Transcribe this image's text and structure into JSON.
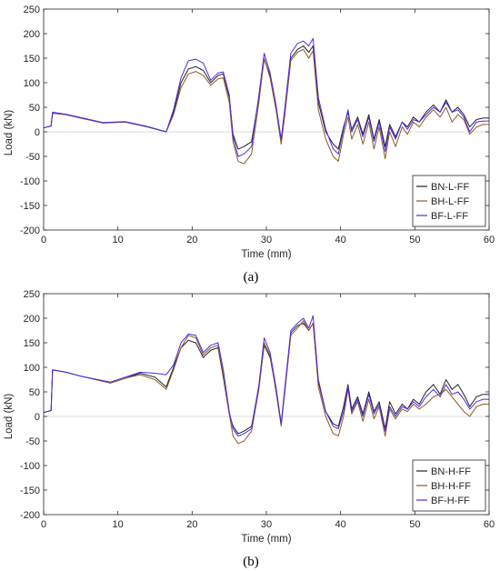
{
  "chart_data": [
    {
      "type": "line",
      "caption": "(a)",
      "xlabel": "Time (mm)",
      "ylabel": "Load (kN)",
      "xlim": [
        0,
        60
      ],
      "ylim": [
        -200,
        250
      ],
      "xticks": [
        0,
        10,
        20,
        30,
        40,
        50,
        60
      ],
      "yticks": [
        -200,
        -150,
        -100,
        -50,
        0,
        50,
        100,
        150,
        200,
        250
      ],
      "legend_position": "bottom-right",
      "zero_line": true,
      "series": [
        {
          "name": "BN-L-FF",
          "color": "#222222",
          "x": [
            0,
            1,
            1.2,
            3,
            5,
            8,
            11,
            14,
            16.5,
            17.5,
            18.5,
            19.5,
            20.5,
            21.5,
            22.5,
            23.5,
            24.2,
            25,
            25.5,
            26.2,
            27,
            28,
            29,
            29.7,
            30.5,
            31.3,
            32,
            32.5,
            33.3,
            34.2,
            35,
            35.7,
            36.3,
            37,
            38,
            39,
            39.7,
            40.4,
            41,
            41.5,
            42.3,
            43,
            43.8,
            44.5,
            45.2,
            46,
            46.6,
            47.4,
            48.3,
            49,
            49.8,
            50.6,
            51.5,
            52.5,
            53.4,
            54.2,
            55,
            55.8,
            56.6,
            57.4,
            58.3,
            59.2,
            60
          ],
          "y": [
            8,
            12,
            38,
            35,
            28,
            18,
            20,
            10,
            0,
            40,
            100,
            128,
            133,
            125,
            100,
            115,
            118,
            70,
            -5,
            -35,
            -30,
            -20,
            70,
            148,
            115,
            50,
            -20,
            45,
            150,
            168,
            175,
            162,
            175,
            60,
            0,
            -25,
            -35,
            10,
            40,
            5,
            30,
            -5,
            35,
            -15,
            25,
            -30,
            15,
            -10,
            20,
            10,
            30,
            20,
            40,
            55,
            40,
            65,
            40,
            50,
            35,
            10,
            25,
            28,
            28
          ]
        },
        {
          "name": "BH-L-FF",
          "color": "#8b5a2b",
          "x": [
            0,
            1,
            1.2,
            3,
            5,
            8,
            11,
            14,
            16.5,
            17.5,
            18.5,
            19.5,
            20.5,
            21.5,
            22.5,
            23.5,
            24.2,
            25,
            25.5,
            26.2,
            27,
            28,
            29,
            29.7,
            30.5,
            31.3,
            32,
            32.5,
            33.3,
            34.2,
            35,
            35.7,
            36.3,
            37,
            38,
            39,
            39.7,
            40.4,
            41,
            41.5,
            42.3,
            43,
            43.8,
            44.5,
            45.2,
            46,
            46.6,
            47.4,
            48.3,
            49,
            49.8,
            50.6,
            51.5,
            52.5,
            53.4,
            54.2,
            55,
            55.8,
            56.6,
            57.4,
            58.3,
            59.2,
            60
          ],
          "y": [
            8,
            12,
            38,
            35,
            28,
            18,
            20,
            10,
            0,
            35,
            90,
            118,
            123,
            115,
            95,
            108,
            110,
            60,
            -20,
            -60,
            -65,
            -45,
            60,
            150,
            110,
            45,
            -25,
            35,
            145,
            162,
            168,
            150,
            165,
            45,
            -15,
            -50,
            -60,
            -5,
            30,
            -15,
            15,
            -25,
            20,
            -35,
            10,
            -55,
            0,
            -30,
            10,
            -5,
            20,
            10,
            30,
            45,
            30,
            50,
            20,
            35,
            25,
            -5,
            10,
            15,
            15
          ]
        },
        {
          "name": "BF-L-FF",
          "color": "#4a2be8",
          "x": [
            0,
            1,
            1.2,
            3,
            5,
            8,
            11,
            14,
            16.5,
            17.5,
            18.5,
            19.5,
            20.5,
            21.5,
            22.5,
            23.5,
            24.2,
            25,
            25.5,
            26.2,
            27,
            28,
            29,
            29.7,
            30.5,
            31.3,
            32,
            32.5,
            33.3,
            34.2,
            35,
            35.7,
            36.3,
            37,
            38,
            39,
            39.7,
            40.4,
            41,
            41.5,
            42.3,
            43,
            43.8,
            44.5,
            45.2,
            46,
            46.6,
            47.4,
            48.3,
            49,
            49.8,
            50.6,
            51.5,
            52.5,
            53.4,
            54.2,
            55,
            55.8,
            56.6,
            57.4,
            58.3,
            59.2,
            60
          ],
          "y": [
            8,
            12,
            40,
            36,
            29,
            19,
            21,
            11,
            0,
            45,
            110,
            145,
            148,
            140,
            105,
            120,
            122,
            75,
            -10,
            -50,
            -45,
            -30,
            75,
            160,
            120,
            55,
            -15,
            50,
            160,
            180,
            185,
            175,
            190,
            70,
            5,
            -35,
            -45,
            5,
            45,
            0,
            25,
            -10,
            30,
            -20,
            20,
            -40,
            10,
            -15,
            20,
            5,
            25,
            20,
            35,
            50,
            40,
            60,
            40,
            45,
            30,
            0,
            20,
            22,
            22
          ]
        }
      ]
    },
    {
      "type": "line",
      "caption": "(b)",
      "xlabel": "Time (mm)",
      "ylabel": "Load (kN)",
      "xlim": [
        0,
        60
      ],
      "ylim": [
        -200,
        250
      ],
      "xticks": [
        0,
        10,
        20,
        30,
        40,
        50,
        60
      ],
      "yticks": [
        -200,
        -150,
        -100,
        -50,
        0,
        50,
        100,
        150,
        200,
        250
      ],
      "legend_position": "bottom-right",
      "zero_line": true,
      "series": [
        {
          "name": "BN-H-FF",
          "color": "#222222",
          "x": [
            0,
            1,
            1.2,
            3,
            5,
            9,
            11,
            13,
            15,
            16.5,
            17.5,
            18.5,
            19.5,
            20.5,
            21.5,
            22.5,
            23.5,
            24.2,
            25,
            25.5,
            26.2,
            27,
            28,
            29,
            29.7,
            30.5,
            31.3,
            32,
            32.5,
            33.3,
            34.2,
            35,
            35.7,
            36.3,
            37,
            38,
            39,
            39.7,
            40.4,
            41,
            41.5,
            42.3,
            43,
            43.8,
            44.5,
            45.2,
            46,
            46.6,
            47.4,
            48.3,
            49,
            49.8,
            50.6,
            51.5,
            52.5,
            53.4,
            54.2,
            55,
            55.8,
            56.6,
            57.4,
            58.3,
            59.2,
            60
          ],
          "y": [
            8,
            12,
            95,
            90,
            82,
            68,
            78,
            88,
            80,
            60,
            100,
            140,
            155,
            150,
            120,
            135,
            140,
            80,
            5,
            -20,
            -35,
            -30,
            -20,
            60,
            145,
            120,
            55,
            -15,
            55,
            170,
            185,
            190,
            175,
            190,
            70,
            10,
            -15,
            -20,
            20,
            65,
            15,
            40,
            5,
            50,
            10,
            30,
            -25,
            30,
            5,
            25,
            15,
            35,
            25,
            50,
            65,
            45,
            75,
            55,
            65,
            45,
            20,
            40,
            45,
            45
          ]
        },
        {
          "name": "BH-H-FF",
          "color": "#8b5a2b",
          "x": [
            0,
            1,
            1.2,
            3,
            5,
            9,
            11,
            13,
            15,
            16.5,
            17.5,
            18.5,
            19.5,
            20.5,
            21.5,
            22.5,
            23.5,
            24.2,
            25,
            25.5,
            26.2,
            27,
            28,
            29,
            29.7,
            30.5,
            31.3,
            32,
            32.5,
            33.3,
            34.2,
            35,
            35.7,
            36.3,
            37,
            38,
            39,
            39.7,
            40.4,
            41,
            41.5,
            42.3,
            43,
            43.8,
            44.5,
            45.2,
            46,
            46.6,
            47.4,
            48.3,
            49,
            49.8,
            50.6,
            51.5,
            52.5,
            53.4,
            54.2,
            55,
            55.8,
            56.6,
            57.4,
            58.3,
            59.2,
            60
          ],
          "y": [
            8,
            12,
            95,
            90,
            82,
            68,
            78,
            85,
            75,
            55,
            95,
            140,
            165,
            160,
            125,
            140,
            145,
            85,
            5,
            -40,
            -55,
            -50,
            -30,
            55,
            150,
            125,
            50,
            -20,
            50,
            165,
            180,
            195,
            175,
            190,
            60,
            0,
            -35,
            -40,
            0,
            55,
            5,
            30,
            -10,
            35,
            -5,
            20,
            -40,
            15,
            -5,
            15,
            10,
            25,
            15,
            25,
            40,
            45,
            55,
            40,
            25,
            10,
            0,
            20,
            25,
            25
          ]
        },
        {
          "name": "BF-H-FF",
          "color": "#4a2be8",
          "x": [
            0,
            1,
            1.2,
            3,
            5,
            9,
            11,
            13,
            15,
            16.5,
            17.5,
            18.5,
            19.5,
            20.5,
            21.5,
            22.5,
            23.5,
            24.2,
            25,
            25.5,
            26.2,
            27,
            28,
            29,
            29.7,
            30.5,
            31.3,
            32,
            32.5,
            33.3,
            34.2,
            35,
            35.7,
            36.3,
            37,
            38,
            39,
            39.7,
            40.4,
            41,
            41.5,
            42.3,
            43,
            43.8,
            44.5,
            45.2,
            46,
            46.6,
            47.4,
            48.3,
            49,
            49.8,
            50.6,
            51.5,
            52.5,
            53.4,
            54.2,
            55,
            55.8,
            56.6,
            57.4,
            58.3,
            59.2,
            60
          ],
          "y": [
            8,
            12,
            95,
            90,
            82,
            70,
            80,
            90,
            88,
            85,
            105,
            150,
            168,
            165,
            130,
            145,
            150,
            95,
            10,
            -25,
            -40,
            -35,
            -25,
            65,
            160,
            130,
            60,
            -15,
            60,
            175,
            190,
            200,
            180,
            205,
            75,
            10,
            -20,
            -25,
            10,
            60,
            10,
            35,
            0,
            45,
            5,
            25,
            -30,
            20,
            0,
            20,
            15,
            30,
            20,
            40,
            55,
            40,
            65,
            45,
            50,
            35,
            15,
            30,
            35,
            35
          ]
        }
      ]
    }
  ]
}
